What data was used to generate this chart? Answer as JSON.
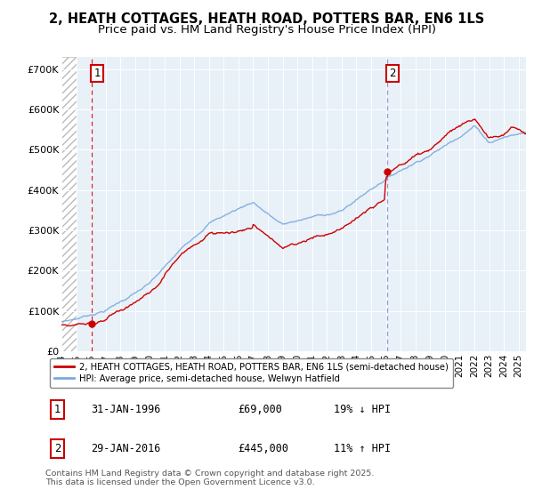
{
  "title": "2, HEATH COTTAGES, HEATH ROAD, POTTERS BAR, EN6 1LS",
  "subtitle": "Price paid vs. HM Land Registry's House Price Index (HPI)",
  "ytick_labels": [
    "£0",
    "£100K",
    "£200K",
    "£300K",
    "£400K",
    "£500K",
    "£600K",
    "£700K"
  ],
  "ytick_values": [
    0,
    100000,
    200000,
    300000,
    400000,
    500000,
    600000,
    700000
  ],
  "ylim": [
    0,
    730000
  ],
  "xlim_start": 1994.0,
  "xlim_end": 2025.5,
  "sale1_date": 1996.08,
  "sale1_price": 69000,
  "sale1_label": "1",
  "sale2_date": 2016.08,
  "sale2_price": 445000,
  "sale2_label": "2",
  "hatch_region_start": 1994.0,
  "hatch_region_end": 1995.0,
  "red_line_color": "#cc0000",
  "blue_line_color": "#7aaadd",
  "sale_marker_color": "#cc0000",
  "dashed_line_color": "#cc0000",
  "dashed_line2_color": "#8888cc",
  "background_color": "#ffffff",
  "plot_bg_color": "#e8f0f8",
  "legend_label_red": "2, HEATH COTTAGES, HEATH ROAD, POTTERS BAR, EN6 1LS (semi-detached house)",
  "legend_label_blue": "HPI: Average price, semi-detached house, Welwyn Hatfield",
  "table_row1": [
    "1",
    "31-JAN-1996",
    "£69,000",
    "19% ↓ HPI"
  ],
  "table_row2": [
    "2",
    "29-JAN-2016",
    "£445,000",
    "11% ↑ HPI"
  ],
  "footer": "Contains HM Land Registry data © Crown copyright and database right 2025.\nThis data is licensed under the Open Government Licence v3.0.",
  "title_fontsize": 10.5,
  "subtitle_fontsize": 9.5,
  "tick_fontsize": 8
}
